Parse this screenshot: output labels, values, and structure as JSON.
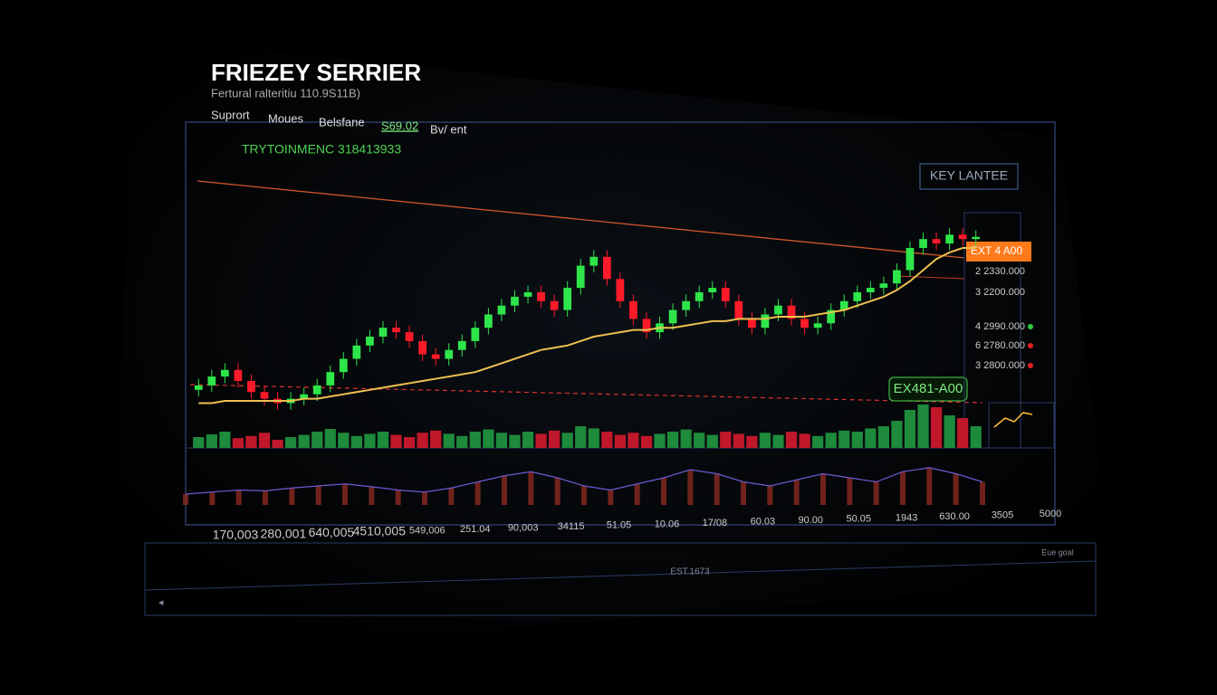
{
  "header": {
    "title": "FRIEZEY SERRIER",
    "subtitle": "Fertural ralteritiu 110.9S11B)",
    "menu": [
      "Suprort",
      "Moues",
      "Belsfane",
      "S69.02",
      "Bv/ ent"
    ]
  },
  "chart": {
    "label": "TRYTOINMENC 318413933",
    "badge": "KEY LANTEE",
    "tag": "EX481-A00",
    "range": [
      0,
      100
    ],
    "open": [
      16,
      18,
      22,
      25,
      20,
      15,
      12,
      10,
      12,
      14,
      18,
      24,
      30,
      36,
      40,
      44,
      42,
      38,
      32,
      30,
      34,
      38,
      44,
      50,
      54,
      58,
      60,
      56,
      52,
      62,
      72,
      76,
      66,
      56,
      48,
      42,
      46,
      52,
      56,
      60,
      62,
      56,
      48,
      44,
      50,
      54,
      48,
      44,
      46,
      52,
      56,
      60,
      62,
      64,
      70,
      80,
      84,
      82,
      86,
      84
    ],
    "close": [
      18,
      22,
      25,
      20,
      15,
      12,
      10,
      12,
      14,
      18,
      24,
      30,
      36,
      40,
      44,
      42,
      38,
      32,
      30,
      34,
      38,
      44,
      50,
      54,
      58,
      60,
      56,
      52,
      62,
      72,
      76,
      66,
      56,
      48,
      42,
      46,
      52,
      56,
      60,
      62,
      56,
      48,
      44,
      50,
      54,
      48,
      44,
      46,
      52,
      56,
      60,
      62,
      64,
      70,
      80,
      84,
      82,
      86,
      84,
      85
    ],
    "high": [
      21,
      25,
      28,
      28,
      23,
      18,
      15,
      15,
      17,
      21,
      27,
      33,
      39,
      43,
      47,
      47,
      45,
      41,
      35,
      37,
      41,
      47,
      53,
      57,
      61,
      63,
      63,
      59,
      65,
      75,
      79,
      79,
      69,
      59,
      51,
      49,
      55,
      59,
      63,
      65,
      65,
      59,
      51,
      53,
      57,
      57,
      51,
      49,
      55,
      59,
      63,
      65,
      67,
      73,
      83,
      87,
      87,
      89,
      89,
      88
    ],
    "low": [
      13,
      15,
      19,
      17,
      12,
      9,
      7,
      7,
      9,
      11,
      15,
      21,
      27,
      33,
      37,
      39,
      35,
      29,
      27,
      27,
      31,
      35,
      41,
      47,
      51,
      55,
      53,
      49,
      49,
      59,
      69,
      63,
      53,
      45,
      39,
      39,
      43,
      49,
      53,
      57,
      53,
      45,
      41,
      41,
      47,
      45,
      41,
      41,
      43,
      49,
      53,
      57,
      59,
      61,
      67,
      77,
      79,
      79,
      81,
      81
    ],
    "ma": [
      10,
      10,
      11,
      11,
      11,
      11,
      11,
      11,
      12,
      12,
      13,
      14,
      15,
      16,
      17,
      18,
      19,
      20,
      21,
      22,
      23,
      24,
      26,
      28,
      30,
      32,
      34,
      35,
      36,
      38,
      40,
      41,
      42,
      43,
      43,
      44,
      44,
      45,
      46,
      47,
      47,
      48,
      48,
      48,
      49,
      49,
      49,
      50,
      51,
      52,
      54,
      56,
      58,
      61,
      65,
      70,
      75,
      78,
      80,
      80
    ],
    "volume": [
      20,
      25,
      30,
      18,
      22,
      28,
      15,
      20,
      24,
      30,
      35,
      28,
      22,
      26,
      30,
      24,
      20,
      28,
      32,
      26,
      22,
      30,
      34,
      28,
      24,
      30,
      26,
      32,
      28,
      40,
      36,
      30,
      24,
      28,
      22,
      26,
      30,
      34,
      28,
      24,
      30,
      26,
      22,
      28,
      24,
      30,
      26,
      22,
      28,
      32,
      30,
      36,
      40,
      50,
      70,
      80,
      75,
      60,
      55,
      40
    ],
    "oscillator": [
      20,
      25,
      30,
      28,
      35,
      40,
      45,
      38,
      30,
      25,
      35,
      50,
      65,
      75,
      60,
      40,
      30,
      45,
      60,
      80,
      70,
      50,
      40,
      55,
      70,
      60,
      50,
      75,
      85,
      70,
      50
    ],
    "x_labels": [
      "170,003",
      "280,001",
      "640,005",
      "4510,005",
      "549,006",
      "251.04",
      "90,003",
      "34115",
      "51.05",
      "10.06",
      "17/08",
      "60.03",
      "90.00",
      "50.05",
      "1943",
      "630.00",
      "3505",
      "5000"
    ]
  },
  "side_panel": {
    "active": "EXT 4 A00",
    "rows": [
      "2 2330.000",
      "3 2200.000",
      "4 2990.000",
      "6 2780.000",
      "3 2800.000"
    ]
  },
  "footer": {
    "label": "EST.1673",
    "right": "Eue goal"
  }
}
